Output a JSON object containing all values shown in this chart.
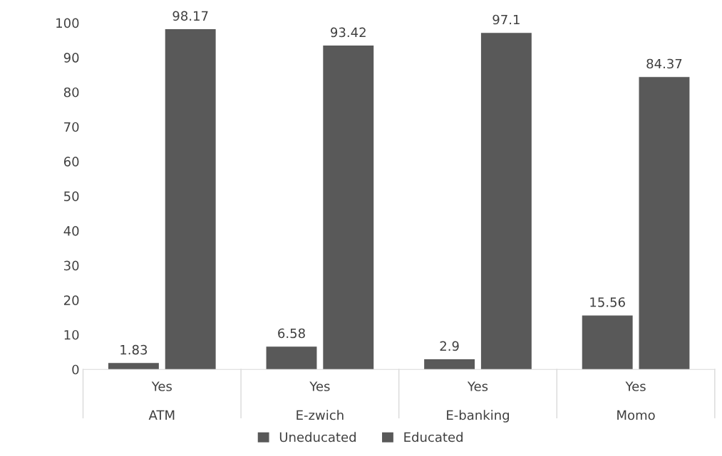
{
  "chart_data": {
    "type": "bar",
    "categories": [
      "Yes\n\nATM",
      "Yes\n\nE-zwich",
      "Yes\n\nE-banking",
      "Yes\n\nMomo"
    ],
    "series": [
      {
        "name": "Uneducated",
        "color": "#595959",
        "values": [
          1.83,
          6.58,
          2.9,
          15.56
        ]
      },
      {
        "name": "Educated",
        "color": "#595959",
        "values": [
          98.17,
          93.42,
          97.1,
          84.37
        ]
      }
    ],
    "ylim": [
      0,
      100
    ],
    "yticks": [
      0,
      10,
      20,
      30,
      40,
      50,
      60,
      70,
      80,
      90,
      100
    ],
    "data_labels": true,
    "grid": false,
    "legend": "bottom"
  }
}
